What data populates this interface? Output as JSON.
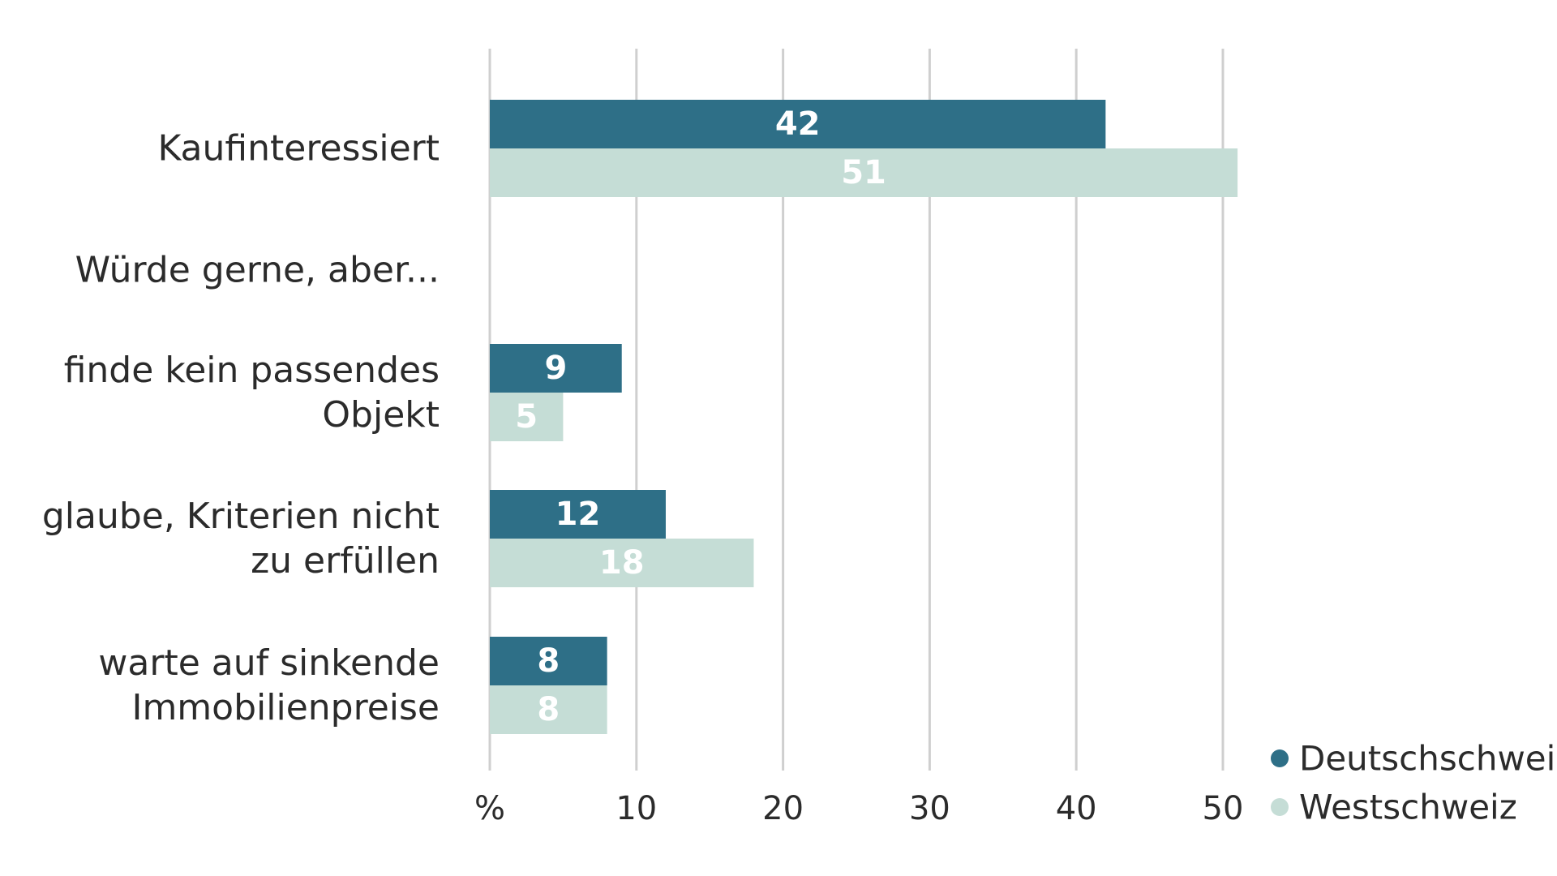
{
  "chart_data": {
    "type": "bar",
    "orientation": "horizontal",
    "categories": [
      [
        "Kaufinteressiert"
      ],
      [
        "Würde gerne, aber..."
      ],
      [
        "finde kein passendes",
        "Objekt"
      ],
      [
        "glaube, Kriterien nicht",
        "zu erfüllen"
      ],
      [
        "warte auf sinkende",
        "Immobilienpreise"
      ]
    ],
    "series": [
      {
        "name": "Deutschschweiz",
        "color": "#2e6f87",
        "values": [
          42,
          null,
          9,
          12,
          8
        ]
      },
      {
        "name": "Westschweiz",
        "color": "#c5ddd6",
        "values": [
          51,
          null,
          5,
          18,
          8
        ]
      }
    ],
    "xlim": [
      0,
      50
    ],
    "x_ticks": [
      {
        "value": 0,
        "label": "%"
      },
      {
        "value": 10,
        "label": "10"
      },
      {
        "value": 20,
        "label": "20"
      },
      {
        "value": 30,
        "label": "30"
      },
      {
        "value": 40,
        "label": "40"
      },
      {
        "value": 50,
        "label": "50"
      }
    ],
    "grid": "vertical",
    "data_labels": true,
    "legend_position": "bottom-right"
  }
}
